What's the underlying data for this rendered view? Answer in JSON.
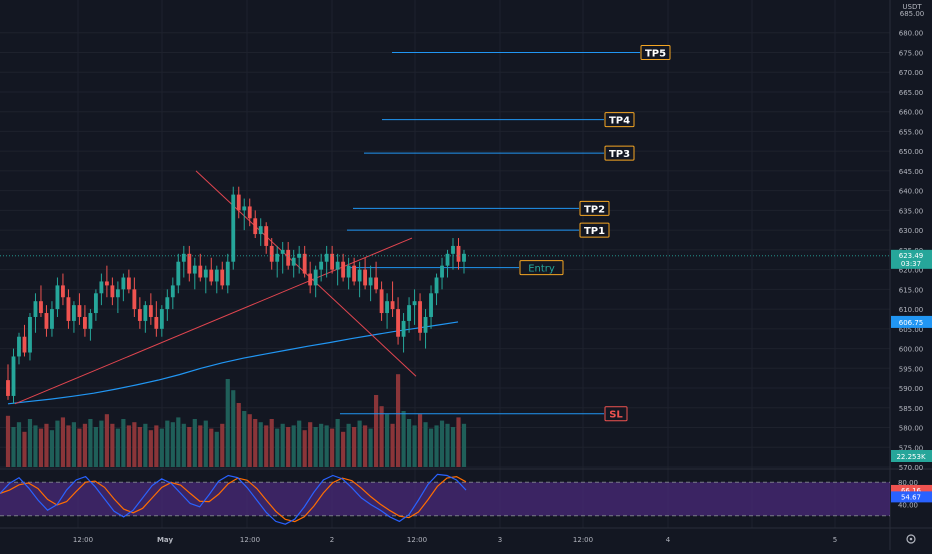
{
  "colors": {
    "background": "#131722",
    "grid": "#1e222d",
    "axis_text": "#b2b5be",
    "bull": "#26a69a",
    "bear": "#ef5350",
    "vol_bull": "#1f5f59",
    "vol_bear": "#8a3539",
    "ma": "#2196f3",
    "trendline": "#e0454f",
    "level_line": "#2196f3",
    "stoch_k": "#2962ff",
    "stoch_d": "#ff6d00",
    "stoch_band": "#4a2a7a",
    "price_tag": "#26a69a",
    "ma_tag": "#2196f3",
    "vol_tag": "#26a69a",
    "stoch_k_tag": "#ef5350",
    "stoch_d_tag": "#2962ff"
  },
  "price_axis": {
    "currency": "USDT",
    "top_tick": "685.00",
    "ticks": [
      "680.00",
      "675.00",
      "670.00",
      "665.00",
      "660.00",
      "655.00",
      "650.00",
      "645.00",
      "640.00",
      "635.00",
      "630.00",
      "625.00",
      "620.00",
      "615.00",
      "610.00",
      "605.00",
      "600.00",
      "595.00",
      "590.00",
      "585.00",
      "580.00",
      "575.00",
      "570.00"
    ],
    "current_price": "623.49",
    "countdown": "03:37",
    "ma_value": "606.75",
    "volume_value": "22.253K"
  },
  "stoch_axis": {
    "ticks": [
      "80.00",
      "40.00"
    ],
    "k_value": "66.16",
    "d_value": "54.67"
  },
  "time_axis": {
    "labels": [
      "12:00",
      "May",
      "12:00",
      "2",
      "12:00",
      "3",
      "12:00",
      "4",
      "5"
    ]
  },
  "levels": {
    "tp5": "TP5",
    "tp4": "TP4",
    "tp3": "TP3",
    "tp2": "TP2",
    "tp1": "TP1",
    "entry": "Entry",
    "sl": "SL"
  },
  "chart_data": {
    "type": "candlestick",
    "symbol_quote": "USDT",
    "ylim": [
      568,
      687
    ],
    "candles_ohlc": [
      [
        592,
        596,
        587,
        588
      ],
      [
        588,
        600,
        586,
        598
      ],
      [
        598,
        604,
        596,
        603
      ],
      [
        603,
        606,
        598,
        599
      ],
      [
        599,
        609,
        597,
        608
      ],
      [
        608,
        614,
        604,
        612
      ],
      [
        612,
        616,
        608,
        609
      ],
      [
        609,
        611,
        603,
        605
      ],
      [
        605,
        612,
        603,
        610
      ],
      [
        610,
        618,
        608,
        616
      ],
      [
        616,
        619,
        611,
        613
      ],
      [
        613,
        615,
        605,
        607
      ],
      [
        607,
        612,
        604,
        611
      ],
      [
        611,
        614,
        606,
        608
      ],
      [
        608,
        611,
        603,
        605
      ],
      [
        605,
        610,
        602,
        609
      ],
      [
        609,
        615,
        607,
        614
      ],
      [
        614,
        619,
        611,
        617
      ],
      [
        617,
        621,
        613,
        616
      ],
      [
        616,
        618,
        611,
        613
      ],
      [
        613,
        617,
        609,
        615
      ],
      [
        615,
        619,
        612,
        618
      ],
      [
        618,
        620,
        614,
        615
      ],
      [
        615,
        618,
        608,
        610
      ],
      [
        610,
        613,
        605,
        607
      ],
      [
        607,
        612,
        604,
        611
      ],
      [
        611,
        614,
        606,
        608
      ],
      [
        608,
        612,
        603,
        605
      ],
      [
        605,
        611,
        603,
        610
      ],
      [
        610,
        615,
        607,
        613
      ],
      [
        613,
        618,
        610,
        616
      ],
      [
        616,
        624,
        614,
        622
      ],
      [
        622,
        626,
        618,
        624
      ],
      [
        624,
        626,
        617,
        619
      ],
      [
        619,
        623,
        615,
        621
      ],
      [
        621,
        624,
        617,
        618
      ],
      [
        618,
        621,
        614,
        620
      ],
      [
        620,
        623,
        616,
        617
      ],
      [
        617,
        621,
        614,
        620
      ],
      [
        620,
        622,
        615,
        616
      ],
      [
        616,
        624,
        614,
        622
      ],
      [
        622,
        641,
        620,
        639
      ],
      [
        639,
        641,
        633,
        635
      ],
      [
        635,
        638,
        630,
        636
      ],
      [
        636,
        638,
        631,
        633
      ],
      [
        633,
        635,
        628,
        629
      ],
      [
        629,
        633,
        626,
        631
      ],
      [
        631,
        632,
        624,
        626
      ],
      [
        626,
        628,
        620,
        622
      ],
      [
        622,
        626,
        618,
        624
      ],
      [
        624,
        627,
        619,
        625
      ],
      [
        625,
        627,
        620,
        621
      ],
      [
        621,
        625,
        618,
        623
      ],
      [
        623,
        626,
        619,
        624
      ],
      [
        624,
        626,
        618,
        619
      ],
      [
        619,
        622,
        614,
        616
      ],
      [
        616,
        621,
        613,
        620
      ],
      [
        620,
        624,
        617,
        622
      ],
      [
        622,
        626,
        618,
        624
      ],
      [
        624,
        626,
        619,
        620
      ],
      [
        620,
        624,
        616,
        622
      ],
      [
        622,
        624,
        617,
        618
      ],
      [
        618,
        623,
        615,
        621
      ],
      [
        621,
        623,
        616,
        617
      ],
      [
        617,
        622,
        613,
        620
      ],
      [
        620,
        623,
        615,
        616
      ],
      [
        616,
        621,
        612,
        618
      ],
      [
        618,
        622,
        614,
        615
      ],
      [
        615,
        617,
        607,
        609
      ],
      [
        609,
        614,
        605,
        612
      ],
      [
        612,
        617,
        608,
        610
      ],
      [
        610,
        613,
        601,
        603
      ],
      [
        603,
        609,
        599,
        607
      ],
      [
        607,
        613,
        604,
        611
      ],
      [
        611,
        615,
        606,
        612
      ],
      [
        612,
        614,
        602,
        604
      ],
      [
        604,
        610,
        600,
        608
      ],
      [
        608,
        616,
        605,
        614
      ],
      [
        614,
        619,
        611,
        618
      ],
      [
        618,
        623,
        615,
        621
      ],
      [
        621,
        625,
        618,
        624
      ],
      [
        624,
        628,
        620,
        626
      ],
      [
        626,
        628,
        620,
        622
      ],
      [
        622,
        625,
        619,
        624
      ]
    ],
    "volume": [
      32,
      25,
      28,
      22,
      30,
      26,
      24,
      27,
      23,
      29,
      31,
      26,
      28,
      24,
      27,
      30,
      25,
      29,
      33,
      27,
      24,
      30,
      26,
      28,
      25,
      27,
      23,
      26,
      24,
      29,
      28,
      31,
      27,
      25,
      30,
      26,
      29,
      24,
      22,
      27,
      55,
      48,
      40,
      35,
      33,
      30,
      28,
      26,
      30,
      24,
      27,
      25,
      26,
      29,
      23,
      28,
      25,
      27,
      26,
      24,
      30,
      22,
      27,
      25,
      29,
      26,
      24,
      45,
      38,
      33,
      27,
      58,
      35,
      30,
      26,
      33,
      28,
      24,
      26,
      29,
      27,
      25,
      31,
      27
    ],
    "moving_average": [
      586,
      586.6,
      587.2,
      587.9,
      588.7,
      589.7,
      590.8,
      592,
      593.4,
      595,
      596.4,
      597.6,
      598.6,
      599.6,
      600.6,
      601.5,
      602.5,
      603.4,
      604.3,
      605.1,
      605.9,
      606.75
    ],
    "stochastic": {
      "upper_band": 80,
      "lower_band": 20,
      "k_last": 66.16,
      "d_last": 54.67,
      "k": [
        60,
        78,
        88,
        70,
        48,
        30,
        40,
        66,
        84,
        90,
        72,
        50,
        28,
        18,
        30,
        52,
        74,
        86,
        78,
        60,
        42,
        36,
        58,
        82,
        92,
        88,
        70,
        48,
        26,
        10,
        5,
        14,
        36,
        62,
        84,
        92,
        86,
        70,
        52,
        40,
        30,
        18,
        10,
        22,
        48,
        76,
        94,
        92,
        84,
        66
      ]
    }
  }
}
